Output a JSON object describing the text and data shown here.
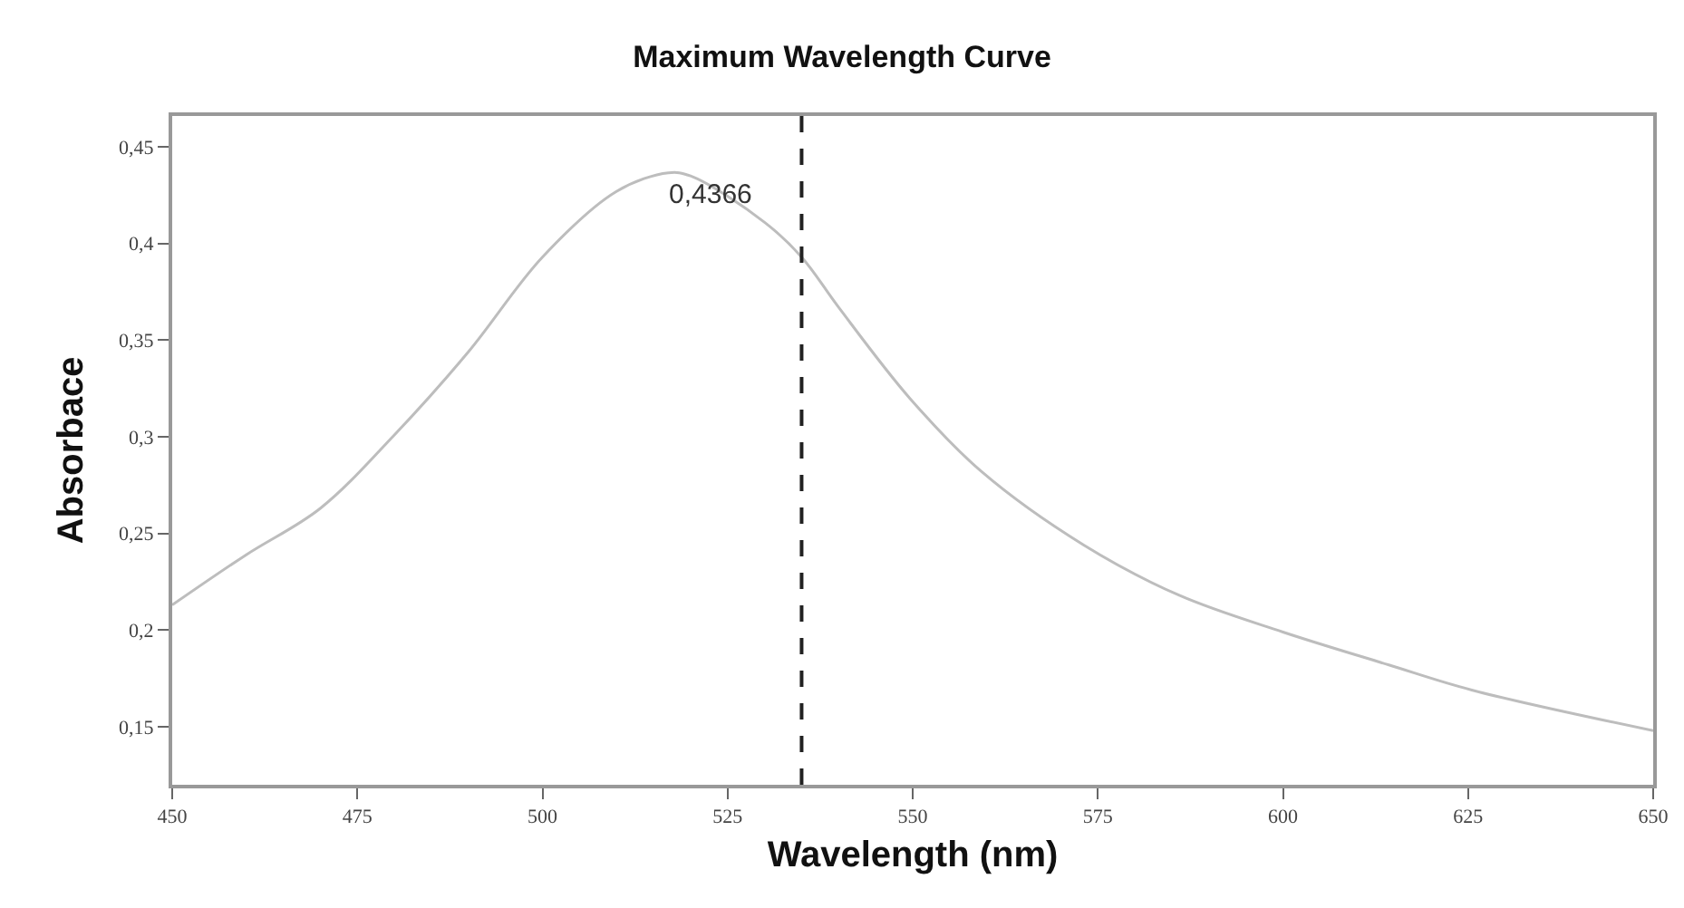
{
  "chart_data": {
    "type": "line",
    "title": "Maximum Wavelength Curve",
    "xlabel": "Wavelength (nm)",
    "ylabel": "Absorbace",
    "x": [
      450,
      460,
      470,
      480,
      490,
      500,
      510,
      517,
      520,
      530,
      535,
      540,
      549.6,
      559.3,
      573.1,
      586,
      600,
      614.3,
      625.5,
      650
    ],
    "series": [
      {
        "color": "#bdbdbd",
        "values": [
          0.213,
          0.239,
          0.263,
          0.301,
          0.344,
          0.393,
          0.427,
          0.4366,
          0.435,
          0.411,
          0.393,
          0.367,
          0.32,
          0.282,
          0.244,
          0.218,
          0.199,
          0.182,
          0.169,
          0.148
        ]
      }
    ],
    "xlim": [
      450,
      650
    ],
    "ylim": [
      0.12,
      0.466
    ],
    "xticks": [
      450,
      475,
      500,
      525,
      550,
      575,
      600,
      625,
      650
    ],
    "yticks": [
      {
        "value": 0.15,
        "label": "0,15"
      },
      {
        "value": 0.2,
        "label": "0,2"
      },
      {
        "value": 0.25,
        "label": "0,25"
      },
      {
        "value": 0.3,
        "label": "0,3"
      },
      {
        "value": 0.35,
        "label": "0,35"
      },
      {
        "value": 0.4,
        "label": "0,4"
      },
      {
        "value": 0.45,
        "label": "0,45"
      }
    ],
    "annotations": [
      {
        "text": "0,4366",
        "x": 517,
        "y": 0.4366
      }
    ],
    "ref_lines": [
      {
        "axis": "x",
        "value": 535,
        "color": "#222222",
        "line_style": "dashed"
      }
    ],
    "marker": "none",
    "line_style": "solid"
  }
}
